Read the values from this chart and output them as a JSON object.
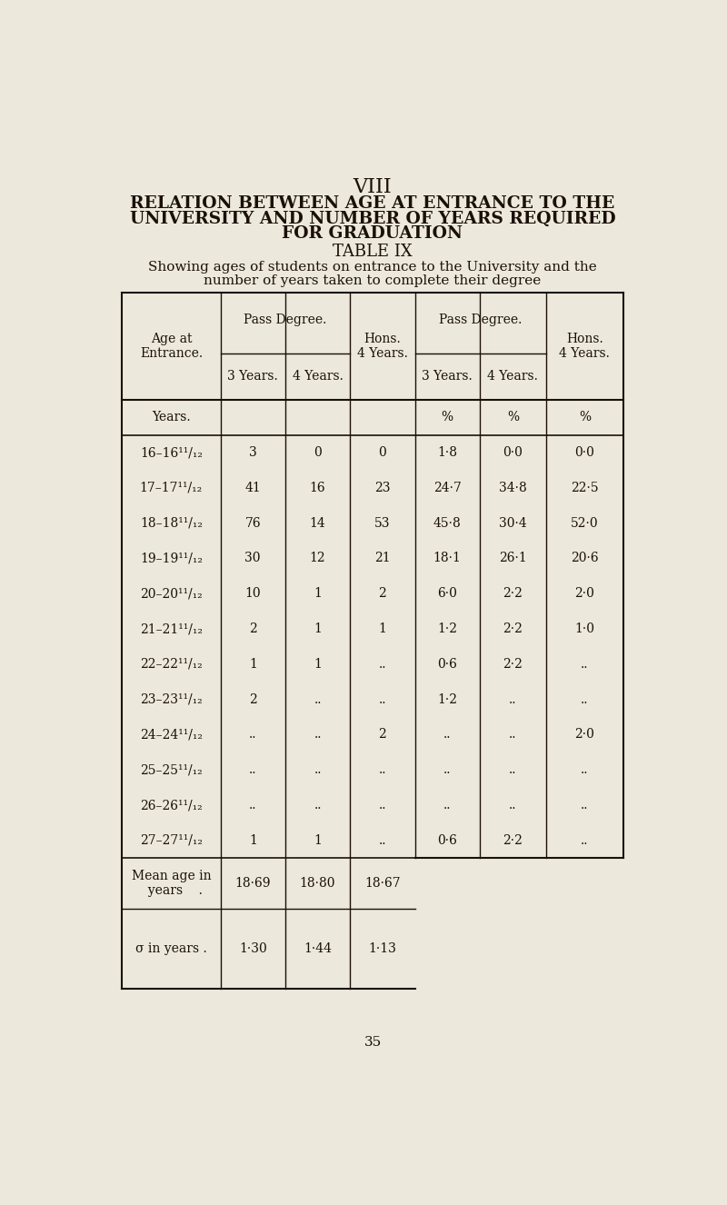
{
  "bg_color": "#EDE8DC",
  "text_color": "#1a1008",
  "chapter_num": "VIII",
  "title_line1": "RELATION BETWEEN AGE AT ENTRANCE TO THE",
  "title_line2": "UNIVERSITY AND NUMBER OF YEARS REQUIRED",
  "title_line3": "FOR GRADUATION",
  "table_title": "TABLE IX",
  "subtitle_line1": "Showing ages of students on entrance to the University and the",
  "subtitle_line2": "number of years taken to complete their degree",
  "page_num": "35",
  "age_labels": [
    "Years.",
    "16–16¹¹/₁₂",
    "17–17¹¹/₁₂",
    "18–18¹¹/₁₂",
    "19–19¹¹/₁₂",
    "20–20¹¹/₁₂",
    "21–21¹¹/₁₂",
    "22–22¹¹/₁₂",
    "23–23¹¹/₁₂",
    "24–24¹¹/₁₂",
    "25–25¹¹/₁₂",
    "26–26¹¹/₁₂",
    "27–27¹¹/₁₂"
  ],
  "col1": [
    "",
    "3",
    "41",
    "76",
    "30",
    "10",
    "2",
    "1",
    "2",
    "..",
    "..",
    "..",
    "1"
  ],
  "col2": [
    "",
    "0",
    "16",
    "14",
    "12",
    "1",
    "1",
    "1",
    "..",
    "..",
    "..",
    "..",
    "1"
  ],
  "col3": [
    "",
    "0",
    "23",
    "53",
    "21",
    "2",
    "1",
    "..",
    "..",
    "2",
    "..",
    "..",
    ".."
  ],
  "col4": [
    "%",
    "1·8",
    "24·7",
    "45·8",
    "18·1",
    "6·0",
    "1·2",
    "0·6",
    "1·2",
    "..",
    "..",
    "..",
    "0·6"
  ],
  "col5": [
    "%",
    "0·0",
    "34·8",
    "30·4",
    "26·1",
    "2·2",
    "2·2",
    "2·2",
    "..",
    "..",
    "..",
    "..",
    "2·2"
  ],
  "col6": [
    "%",
    "0·0",
    "22·5",
    "52·0",
    "20·6",
    "2·0",
    "1·0",
    "..",
    "..",
    "2·0",
    "..",
    "..",
    ".."
  ],
  "mean_vals": [
    "18·69",
    "18·80",
    "18·67"
  ],
  "sigma_vals": [
    "1·30",
    "1·44",
    "1·13"
  ]
}
